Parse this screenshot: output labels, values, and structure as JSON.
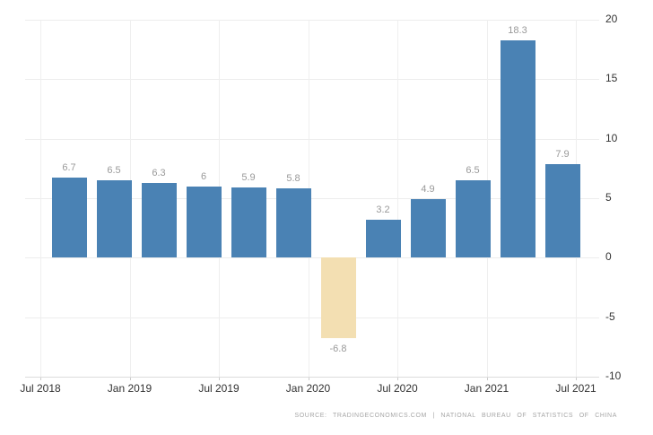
{
  "chart_data": {
    "type": "bar",
    "values": [
      6.7,
      6.5,
      6.3,
      6,
      5.9,
      5.8,
      -6.8,
      3.2,
      4.9,
      6.5,
      18.3,
      7.9
    ],
    "bar_labels": [
      "6.7",
      "6.5",
      "6.3",
      "6",
      "5.9",
      "5.8",
      "-6.8",
      "3.2",
      "4.9",
      "6.5",
      "18.3",
      "7.9"
    ],
    "x_tick_labels": [
      "Jul 2018",
      "Jan 2019",
      "Jul 2019",
      "Jan 2020",
      "Jul 2020",
      "Jan 2021",
      "Jul 2021"
    ],
    "y_ticks": [
      20,
      15,
      10,
      5,
      0,
      -5,
      -10
    ],
    "y_tick_labels": [
      "20",
      "15",
      "10",
      "5",
      "0",
      "-5",
      "-10"
    ],
    "ylim": [
      -10,
      20
    ],
    "grid": true,
    "y_axis_position": "right",
    "colors": {
      "bar": "#4a82b4",
      "negative_bar": "#f3dfb2",
      "value_label": "#999999",
      "axis_label": "#333333",
      "gridline": "#ededed"
    }
  },
  "footer": {
    "source_text": "SOURCE: TRADINGECONOMICS.COM | NATIONAL BUREAU OF STATISTICS OF CHINA"
  }
}
